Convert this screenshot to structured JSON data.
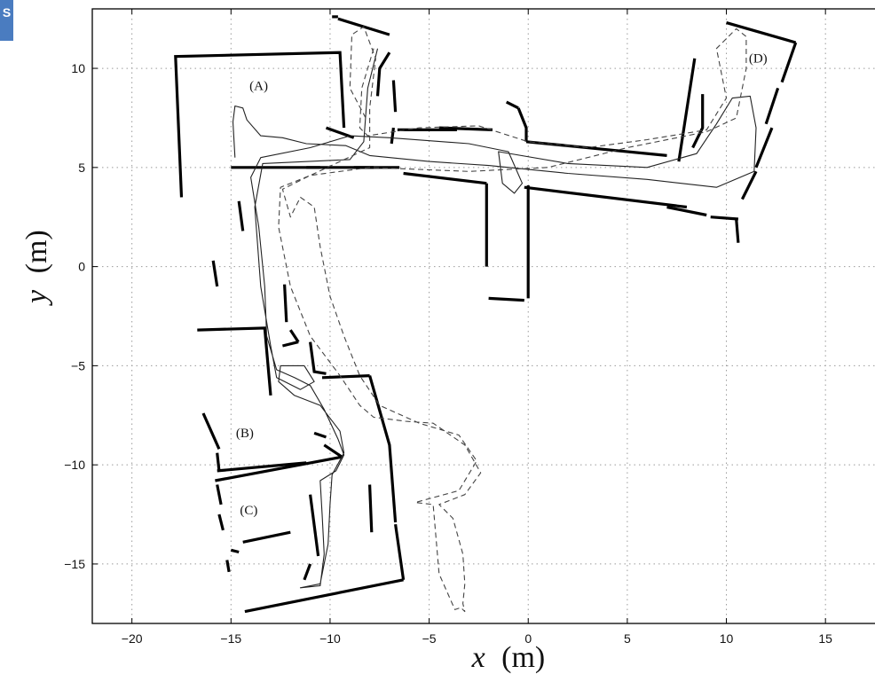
{
  "badge": {
    "text": "S"
  },
  "chart_data": {
    "type": "line",
    "title": "",
    "xlabel": "x",
    "xunit": "(m)",
    "ylabel": "y",
    "yunit": "(m)",
    "xlim": [
      -22,
      17.5
    ],
    "ylim": [
      -18,
      13
    ],
    "xticks": [
      -20,
      -15,
      -10,
      -5,
      0,
      5,
      10,
      15
    ],
    "yticks": [
      -15,
      -10,
      -5,
      0,
      5,
      10
    ],
    "xtick_labels": [
      "−20",
      "−15",
      "−10",
      "−5",
      "0",
      "5",
      "10",
      "15"
    ],
    "ytick_labels": [
      "−15",
      "−10",
      "−5",
      "0",
      "5",
      "10"
    ],
    "grid": true,
    "grid_style": "dotted",
    "regions": [
      {
        "label": "(A)",
        "x": -13.6,
        "y": 8.9
      },
      {
        "label": "(B)",
        "x": -14.3,
        "y": -8.6
      },
      {
        "label": "(C)",
        "x": -14.1,
        "y": -12.5
      },
      {
        "label": "(D)",
        "x": 11.6,
        "y": 10.3
      }
    ],
    "walls": [
      [
        [
          -17.5,
          3.5
        ],
        [
          -17.8,
          10.6
        ],
        [
          -9.5,
          10.8
        ],
        [
          -9.3,
          7.0
        ]
      ],
      [
        [
          -9.9,
          12.6
        ],
        [
          -9.6,
          12.6
        ]
      ],
      [
        [
          -9.6,
          12.5
        ],
        [
          -7.0,
          11.7
        ]
      ],
      [
        [
          -7.6,
          8.6
        ],
        [
          -7.5,
          10.0
        ],
        [
          -7.0,
          10.8
        ]
      ],
      [
        [
          -6.8,
          9.4
        ],
        [
          -6.7,
          7.8
        ]
      ],
      [
        [
          -10.2,
          7.0
        ],
        [
          -8.8,
          6.5
        ]
      ],
      [
        [
          -6.8,
          7.0
        ],
        [
          -6.9,
          6.2
        ]
      ],
      [
        [
          -6.6,
          6.9
        ],
        [
          -3.6,
          6.9
        ]
      ],
      [
        [
          -4.5,
          7.0
        ],
        [
          -1.8,
          6.9
        ]
      ],
      [
        [
          -1.1,
          8.3
        ],
        [
          -0.5,
          8.0
        ]
      ],
      [
        [
          -0.5,
          8.0
        ],
        [
          -0.1,
          7.0
        ],
        [
          -0.1,
          6.3
        ]
      ],
      [
        [
          -0.1,
          6.3
        ],
        [
          7.0,
          5.6
        ]
      ],
      [
        [
          -15.0,
          5.0
        ],
        [
          -10.5,
          5.0
        ]
      ],
      [
        [
          -11.2,
          5.0
        ],
        [
          -7.8,
          5.0
        ]
      ],
      [
        [
          -8.8,
          5.0
        ],
        [
          -6.5,
          5.0
        ]
      ],
      [
        [
          -6.3,
          4.7
        ],
        [
          -2.1,
          4.2
        ]
      ],
      [
        [
          -2.1,
          4.2
        ],
        [
          -2.1,
          0.0
        ]
      ],
      [
        [
          0.0,
          4.1
        ],
        [
          0.0,
          1.0
        ],
        [
          0.0,
          -1.6
        ]
      ],
      [
        [
          -2.0,
          -1.6
        ],
        [
          -0.2,
          -1.7
        ]
      ],
      [
        [
          -0.2,
          4.0
        ],
        [
          8.0,
          3.0
        ]
      ],
      [
        [
          7.0,
          3.0
        ],
        [
          9.0,
          2.6
        ]
      ],
      [
        [
          9.2,
          2.5
        ],
        [
          10.6,
          2.4
        ]
      ],
      [
        [
          10.5,
          2.4
        ],
        [
          10.6,
          1.2
        ]
      ],
      [
        [
          7.6,
          5.3
        ],
        [
          8.4,
          10.5
        ]
      ],
      [
        [
          8.3,
          6.0
        ],
        [
          8.8,
          7.0
        ],
        [
          8.8,
          8.7
        ]
      ],
      [
        [
          10.0,
          12.3
        ],
        [
          13.5,
          11.3
        ]
      ],
      [
        [
          13.5,
          11.3
        ],
        [
          12.8,
          9.3
        ]
      ],
      [
        [
          12.6,
          9.0
        ],
        [
          12.0,
          7.2
        ]
      ],
      [
        [
          12.3,
          7.0
        ],
        [
          11.5,
          5.0
        ]
      ],
      [
        [
          11.5,
          4.8
        ],
        [
          10.8,
          3.4
        ]
      ],
      [
        [
          -14.6,
          3.3
        ],
        [
          -14.4,
          1.8
        ]
      ],
      [
        [
          -15.9,
          0.3
        ],
        [
          -15.7,
          -1.0
        ]
      ],
      [
        [
          -12.3,
          -0.9
        ],
        [
          -12.2,
          -2.8
        ]
      ],
      [
        [
          -12.0,
          -3.2
        ],
        [
          -11.6,
          -3.8
        ]
      ],
      [
        [
          -11.6,
          -3.8
        ],
        [
          -12.4,
          -4.0
        ]
      ],
      [
        [
          -16.7,
          -3.2
        ],
        [
          -13.3,
          -3.1
        ],
        [
          -13.0,
          -6.5
        ]
      ],
      [
        [
          -11.0,
          -3.8
        ],
        [
          -10.8,
          -5.3
        ],
        [
          -10.2,
          -5.4
        ]
      ],
      [
        [
          -10.4,
          -5.6
        ],
        [
          -8.0,
          -5.5
        ]
      ],
      [
        [
          -8.0,
          -5.5
        ],
        [
          -7.0,
          -9.0
        ],
        [
          -6.7,
          -12.9
        ]
      ],
      [
        [
          -6.7,
          -13.0
        ],
        [
          -6.3,
          -15.8
        ]
      ],
      [
        [
          -6.3,
          -15.8
        ],
        [
          -14.3,
          -17.4
        ]
      ],
      [
        [
          -16.4,
          -7.4
        ],
        [
          -15.6,
          -9.2
        ]
      ],
      [
        [
          -15.7,
          -9.4
        ],
        [
          -15.6,
          -10.3
        ]
      ],
      [
        [
          -15.7,
          -10.3
        ],
        [
          -11.2,
          -9.9
        ]
      ],
      [
        [
          -10.8,
          -8.4
        ],
        [
          -10.2,
          -8.6
        ]
      ],
      [
        [
          -10.3,
          -9.0
        ],
        [
          -9.4,
          -9.6
        ]
      ],
      [
        [
          -9.4,
          -9.6
        ],
        [
          -15.8,
          -10.8
        ]
      ],
      [
        [
          -15.7,
          -11.0
        ],
        [
          -15.5,
          -12.0
        ]
      ],
      [
        [
          -15.6,
          -12.5
        ],
        [
          -15.4,
          -13.3
        ]
      ],
      [
        [
          -14.4,
          -13.9
        ],
        [
          -12.0,
          -13.4
        ]
      ],
      [
        [
          -15.0,
          -14.3
        ],
        [
          -14.6,
          -14.4
        ]
      ],
      [
        [
          -15.2,
          -14.8
        ],
        [
          -15.1,
          -15.4
        ]
      ],
      [
        [
          -11.0,
          -11.5
        ],
        [
          -10.6,
          -14.6
        ]
      ],
      [
        [
          -11.3,
          -15.8
        ],
        [
          -11.0,
          -15.0
        ]
      ],
      [
        [
          -8.0,
          -11.0
        ],
        [
          -7.9,
          -13.4
        ]
      ]
    ],
    "series": [
      {
        "style": "solid",
        "points": [
          [
            -14.8,
            5.5
          ],
          [
            -14.9,
            7.3
          ],
          [
            -14.8,
            8.1
          ],
          [
            -14.4,
            8.0
          ],
          [
            -14.2,
            7.4
          ],
          [
            -13.5,
            6.6
          ],
          [
            -12.4,
            6.5
          ],
          [
            -11.2,
            6.2
          ],
          [
            -9.2,
            6.1
          ],
          [
            -8.0,
            5.6
          ],
          [
            -5.0,
            5.3
          ],
          [
            -2.0,
            5.1
          ],
          [
            2.0,
            4.7
          ],
          [
            6.0,
            4.4
          ],
          [
            9.5,
            4.0
          ],
          [
            11.4,
            4.8
          ],
          [
            11.5,
            7.0
          ],
          [
            11.2,
            8.6
          ],
          [
            10.3,
            8.5
          ],
          [
            9.5,
            7.2
          ],
          [
            8.5,
            5.7
          ],
          [
            6.0,
            5.0
          ],
          [
            2.0,
            5.2
          ],
          [
            -1.5,
            5.8
          ],
          [
            -1.3,
            4.2
          ],
          [
            -0.7,
            3.7
          ],
          [
            -0.3,
            4.2
          ],
          [
            -1.0,
            5.8
          ],
          [
            -3.0,
            6.2
          ],
          [
            -7.0,
            6.5
          ],
          [
            -9.0,
            6.6
          ],
          [
            -11.0,
            6.0
          ],
          [
            -13.5,
            5.5
          ],
          [
            -14.0,
            4.5
          ],
          [
            -13.6,
            2.0
          ],
          [
            -13.3,
            -1.0
          ],
          [
            -13.2,
            -3.5
          ],
          [
            -12.7,
            -5.2
          ],
          [
            -11.8,
            -5.6
          ],
          [
            -11.0,
            -6.0
          ],
          [
            -10.3,
            -7.2
          ],
          [
            -9.6,
            -8.7
          ],
          [
            -9.3,
            -9.5
          ],
          [
            -9.7,
            -10.3
          ],
          [
            -10.5,
            -10.8
          ],
          [
            -10.4,
            -12.5
          ],
          [
            -10.3,
            -14.5
          ],
          [
            -10.5,
            -16.1
          ],
          [
            -11.5,
            -16.2
          ],
          [
            -10.5,
            -16.0
          ],
          [
            -10.1,
            -14.0
          ],
          [
            -10.0,
            -12.0
          ],
          [
            -9.9,
            -10.5
          ],
          [
            -9.3,
            -9.4
          ],
          [
            -9.5,
            -8.3
          ],
          [
            -10.5,
            -7.0
          ],
          [
            -11.8,
            -6.5
          ],
          [
            -12.6,
            -5.8
          ],
          [
            -12.5,
            -5.0
          ],
          [
            -11.3,
            -5.0
          ],
          [
            -10.8,
            -5.8
          ],
          [
            -11.5,
            -6.2
          ],
          [
            -12.7,
            -5.6
          ],
          [
            -13.0,
            -4.0
          ],
          [
            -13.5,
            -1.0
          ],
          [
            -13.8,
            3.0
          ],
          [
            -13.4,
            5.2
          ],
          [
            -9.0,
            5.4
          ],
          [
            -8.3,
            6.3
          ],
          [
            -8.1,
            9.0
          ],
          [
            -7.6,
            11.0
          ]
        ]
      },
      {
        "style": "dashed",
        "points": [
          [
            -7.8,
            11.0
          ],
          [
            -8.4,
            9.0
          ],
          [
            -8.5,
            7.0
          ],
          [
            -8.1,
            6.6
          ],
          [
            -5.5,
            7.0
          ],
          [
            -2.5,
            7.1
          ],
          [
            0.0,
            6.3
          ],
          [
            3.0,
            6.0
          ],
          [
            6.0,
            6.4
          ],
          [
            9.0,
            6.9
          ],
          [
            10.0,
            8.5
          ],
          [
            9.5,
            11.0
          ],
          [
            10.5,
            12.0
          ],
          [
            11.0,
            11.6
          ],
          [
            11.0,
            10.0
          ],
          [
            10.5,
            7.5
          ],
          [
            9.0,
            6.8
          ],
          [
            5.0,
            6.0
          ],
          [
            1.0,
            5.0
          ],
          [
            -3.0,
            4.8
          ],
          [
            -8.0,
            5.0
          ],
          [
            -11.0,
            4.6
          ],
          [
            -12.5,
            4.0
          ],
          [
            -12.6,
            2.0
          ],
          [
            -12.0,
            -1.0
          ],
          [
            -11.0,
            -3.5
          ],
          [
            -9.5,
            -5.5
          ],
          [
            -8.5,
            -7.0
          ],
          [
            -7.8,
            -7.6
          ],
          [
            -6.2,
            -7.8
          ],
          [
            -4.8,
            -7.9
          ],
          [
            -3.2,
            -9.0
          ],
          [
            -2.4,
            -10.4
          ],
          [
            -3.2,
            -11.5
          ],
          [
            -4.5,
            -12.0
          ],
          [
            -3.8,
            -12.7
          ],
          [
            -3.3,
            -14.5
          ],
          [
            -3.2,
            -16.0
          ],
          [
            -3.3,
            -17.0
          ],
          [
            -3.2,
            -17.4
          ],
          [
            -3.4,
            -17.2
          ],
          [
            -3.7,
            -17.3
          ],
          [
            -4.5,
            -15.5
          ],
          [
            -4.8,
            -12.0
          ],
          [
            -5.7,
            -11.9
          ],
          [
            -3.5,
            -11.3
          ],
          [
            -2.6,
            -9.8
          ],
          [
            -3.5,
            -8.5
          ],
          [
            -5.5,
            -7.9
          ],
          [
            -7.5,
            -7.0
          ],
          [
            -8.5,
            -5.5
          ],
          [
            -9.3,
            -3.5
          ],
          [
            -10.0,
            -1.5
          ],
          [
            -10.5,
            1.0
          ],
          [
            -10.8,
            3.0
          ],
          [
            -11.5,
            3.5
          ],
          [
            -12.0,
            2.5
          ],
          [
            -12.4,
            3.9
          ],
          [
            -11.0,
            4.6
          ],
          [
            -8.0,
            6.0
          ],
          [
            -8.0,
            8.0
          ],
          [
            -7.7,
            10.5
          ],
          [
            -8.3,
            12.1
          ],
          [
            -8.9,
            11.7
          ],
          [
            -9.0,
            9.0
          ],
          [
            -8.2,
            7.5
          ]
        ]
      }
    ]
  }
}
